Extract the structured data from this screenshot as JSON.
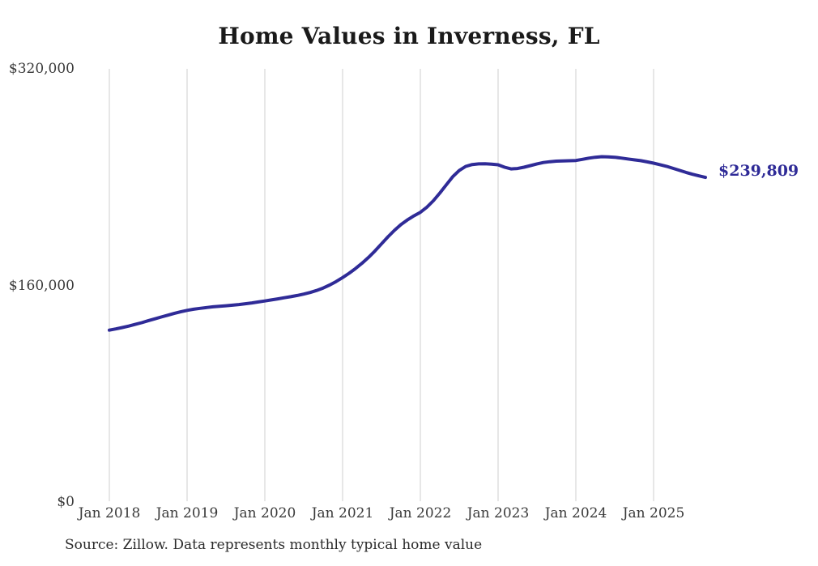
{
  "title": "Home Values in Inverness, FL",
  "source_note": "Source: Zillow. Data represents monthly typical home value",
  "end_label": "$239,809",
  "colors": {
    "line": "#2f2b97",
    "grid": "#cfcfcf",
    "axis_text": "#3a3a3a",
    "title_text": "#1a1a1a",
    "annotation_text": "#2f2b97"
  },
  "chart_data": {
    "type": "line",
    "title": "Home Values in Inverness, FL",
    "series_name": "Typical home value (monthly, Zillow)",
    "x_start": "2018-01",
    "x_end": "2025-09",
    "x_frequency": "monthly",
    "x": [
      "2018-01",
      "2018-02",
      "2018-03",
      "2018-04",
      "2018-05",
      "2018-06",
      "2018-07",
      "2018-08",
      "2018-09",
      "2018-10",
      "2018-11",
      "2018-12",
      "2019-01",
      "2019-02",
      "2019-03",
      "2019-04",
      "2019-05",
      "2019-06",
      "2019-07",
      "2019-08",
      "2019-09",
      "2019-10",
      "2019-11",
      "2019-12",
      "2020-01",
      "2020-02",
      "2020-03",
      "2020-04",
      "2020-05",
      "2020-06",
      "2020-07",
      "2020-08",
      "2020-09",
      "2020-10",
      "2020-11",
      "2020-12",
      "2021-01",
      "2021-02",
      "2021-03",
      "2021-04",
      "2021-05",
      "2021-06",
      "2021-07",
      "2021-08",
      "2021-09",
      "2021-10",
      "2021-11",
      "2021-12",
      "2022-01",
      "2022-02",
      "2022-03",
      "2022-04",
      "2022-05",
      "2022-06",
      "2022-07",
      "2022-08",
      "2022-09",
      "2022-10",
      "2022-11",
      "2022-12",
      "2023-01",
      "2023-02",
      "2023-03",
      "2023-04",
      "2023-05",
      "2023-06",
      "2023-07",
      "2023-08",
      "2023-09",
      "2023-10",
      "2023-11",
      "2023-12",
      "2024-01",
      "2024-02",
      "2024-03",
      "2024-04",
      "2024-05",
      "2024-06",
      "2024-07",
      "2024-08",
      "2024-09",
      "2024-10",
      "2024-11",
      "2024-12",
      "2025-01",
      "2025-02",
      "2025-03",
      "2025-04",
      "2025-05",
      "2025-06",
      "2025-07",
      "2025-08",
      "2025-09"
    ],
    "values": [
      127000,
      127900,
      128900,
      130000,
      131200,
      132500,
      133900,
      135300,
      136700,
      138000,
      139300,
      140500,
      141600,
      142400,
      143100,
      143700,
      144200,
      144600,
      145000,
      145400,
      145900,
      146500,
      147100,
      147800,
      148500,
      149300,
      150100,
      150900,
      151700,
      152600,
      153600,
      154800,
      156300,
      158100,
      160300,
      162900,
      165800,
      169000,
      172500,
      176400,
      180700,
      185500,
      190700,
      195900,
      200700,
      204900,
      208400,
      211400,
      214000,
      217800,
      222500,
      228200,
      234300,
      240300,
      244900,
      247900,
      249300,
      249800,
      249900,
      249600,
      249100,
      247300,
      246100,
      246400,
      247300,
      248500,
      249800,
      250800,
      251400,
      251800,
      252000,
      252100,
      252300,
      253100,
      254000,
      254700,
      255100,
      255000,
      254700,
      254100,
      253400,
      252800,
      252200,
      251300,
      250300,
      249200,
      248000,
      246500,
      245000,
      243500,
      242100,
      240900,
      239809
    ],
    "last_value": 239809,
    "annotation": {
      "text": "$239,809",
      "position": "line-end"
    },
    "x_tick_labels": [
      "Jan 2018",
      "Jan 2019",
      "Jan 2020",
      "Jan 2021",
      "Jan 2022",
      "Jan 2023",
      "Jan 2024",
      "Jan 2025"
    ],
    "y_tick_labels": [
      "$0",
      "$160,000",
      "$320,000"
    ],
    "y_tick_values": [
      0,
      160000,
      320000
    ],
    "ylim": [
      0,
      320000
    ],
    "grid": "vertical-only",
    "legend": "none"
  }
}
